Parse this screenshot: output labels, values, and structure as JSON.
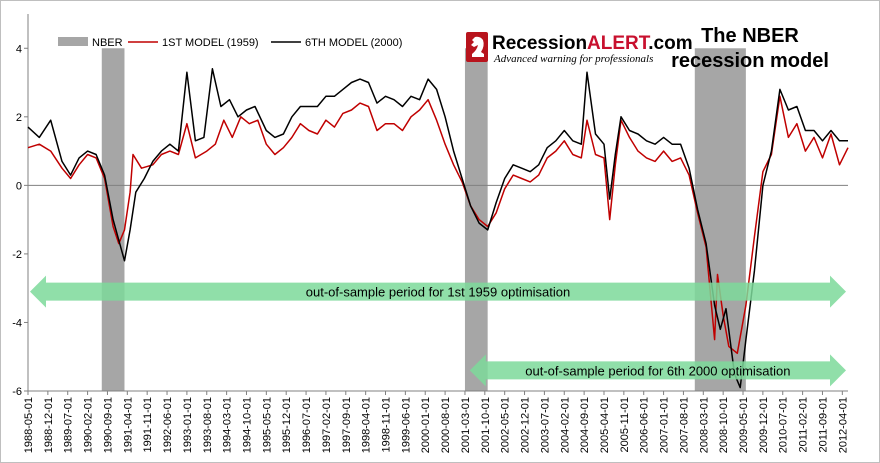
{
  "chart_data": {
    "type": "line",
    "title": "The NBER recession model",
    "title_lines": [
      "The NBER",
      "recession model"
    ],
    "brand": {
      "name_prefix": "Recession",
      "name_accent": "ALERT",
      "name_suffix": ".com",
      "tagline": "Advanced warning for professionals"
    },
    "ylim": [
      -6,
      5
    ],
    "yticks": [
      -6,
      -4,
      -2,
      0,
      2,
      4
    ],
    "x_start": "1988-05",
    "x_end": "2012-06",
    "xtick_labels": [
      "1988-05-01",
      "1988-12-01",
      "1989-07-01",
      "1990-02-01",
      "1990-09-01",
      "1991-04-01",
      "1991-11-01",
      "1992-06-01",
      "1993-01-01",
      "1993-08-01",
      "1994-03-01",
      "1994-10-01",
      "1995-05-01",
      "1995-12-01",
      "1996-07-01",
      "1997-02-01",
      "1997-09-01",
      "1998-04-01",
      "1998-11-01",
      "1999-06-01",
      "2000-01-01",
      "2000-08-01",
      "2001-03-01",
      "2001-10-01",
      "2002-05-01",
      "2002-12-01",
      "2003-07-01",
      "2004-02-01",
      "2004-09-01",
      "2005-04-01",
      "2005-11-01",
      "2006-06-01",
      "2007-01-01",
      "2007-08-01",
      "2008-03-01",
      "2008-10-01",
      "2009-05-01",
      "2009-12-01",
      "2010-07-01",
      "2011-02-01",
      "2011-09-01",
      "2012-04-01"
    ],
    "legend": [
      {
        "name": "NBER",
        "color": "#a6a6a6",
        "kind": "bar"
      },
      {
        "name": "1ST MODEL (1959)",
        "color": "#c00000",
        "kind": "line"
      },
      {
        "name": "6TH MODEL (2000)",
        "color": "#000000",
        "kind": "line"
      }
    ],
    "recessions": [
      {
        "start": "1990-07",
        "end": "1991-03"
      },
      {
        "start": "2001-03",
        "end": "2001-11"
      },
      {
        "start": "2007-12",
        "end": "2009-06"
      }
    ],
    "series": [
      {
        "name": "1ST MODEL (1959)",
        "color": "#c00000",
        "points": [
          [
            "1988-05",
            1.1
          ],
          [
            "1988-09",
            1.2
          ],
          [
            "1989-01",
            1.0
          ],
          [
            "1989-05",
            0.5
          ],
          [
            "1989-08",
            0.2
          ],
          [
            "1989-11",
            0.6
          ],
          [
            "1990-02",
            0.9
          ],
          [
            "1990-05",
            0.8
          ],
          [
            "1990-08",
            0.2
          ],
          [
            "1990-11",
            -1.2
          ],
          [
            "1991-01",
            -1.7
          ],
          [
            "1991-03",
            -1.3
          ],
          [
            "1991-05",
            -0.2
          ],
          [
            "1991-06",
            0.9
          ],
          [
            "1991-09",
            0.5
          ],
          [
            "1992-01",
            0.6
          ],
          [
            "1992-04",
            0.9
          ],
          [
            "1992-07",
            1.0
          ],
          [
            "1992-10",
            0.9
          ],
          [
            "1993-01",
            1.8
          ],
          [
            "1993-04",
            0.8
          ],
          [
            "1993-08",
            1.0
          ],
          [
            "1993-11",
            1.2
          ],
          [
            "1994-02",
            1.9
          ],
          [
            "1994-05",
            1.4
          ],
          [
            "1994-08",
            2.0
          ],
          [
            "1994-11",
            1.8
          ],
          [
            "1995-02",
            1.9
          ],
          [
            "1995-05",
            1.2
          ],
          [
            "1995-08",
            0.9
          ],
          [
            "1995-11",
            1.1
          ],
          [
            "1996-02",
            1.4
          ],
          [
            "1996-05",
            1.8
          ],
          [
            "1996-08",
            1.6
          ],
          [
            "1996-11",
            1.5
          ],
          [
            "1997-02",
            1.9
          ],
          [
            "1997-05",
            1.7
          ],
          [
            "1997-08",
            2.1
          ],
          [
            "1997-11",
            2.2
          ],
          [
            "1998-02",
            2.4
          ],
          [
            "1998-05",
            2.3
          ],
          [
            "1998-08",
            1.6
          ],
          [
            "1998-11",
            1.8
          ],
          [
            "1999-02",
            1.8
          ],
          [
            "1999-05",
            1.6
          ],
          [
            "1999-08",
            2.0
          ],
          [
            "1999-11",
            2.2
          ],
          [
            "2000-02",
            2.5
          ],
          [
            "2000-05",
            1.9
          ],
          [
            "2000-08",
            1.2
          ],
          [
            "2000-11",
            0.6
          ],
          [
            "2001-02",
            0.1
          ],
          [
            "2001-05",
            -0.6
          ],
          [
            "2001-08",
            -1.0
          ],
          [
            "2001-11",
            -1.2
          ],
          [
            "2002-02",
            -0.8
          ],
          [
            "2002-05",
            -0.1
          ],
          [
            "2002-08",
            0.3
          ],
          [
            "2002-11",
            0.2
          ],
          [
            "2003-02",
            0.1
          ],
          [
            "2003-05",
            0.3
          ],
          [
            "2003-08",
            0.8
          ],
          [
            "2003-11",
            1.0
          ],
          [
            "2004-02",
            1.3
          ],
          [
            "2004-05",
            0.9
          ],
          [
            "2004-08",
            0.8
          ],
          [
            "2004-10",
            1.9
          ],
          [
            "2005-01",
            0.9
          ],
          [
            "2005-04",
            0.8
          ],
          [
            "2005-06",
            -1.0
          ],
          [
            "2005-08",
            0.6
          ],
          [
            "2005-10",
            1.9
          ],
          [
            "2006-01",
            1.4
          ],
          [
            "2006-04",
            1.0
          ],
          [
            "2006-07",
            0.8
          ],
          [
            "2006-10",
            0.7
          ],
          [
            "2007-01",
            1.0
          ],
          [
            "2007-04",
            0.7
          ],
          [
            "2007-07",
            0.8
          ],
          [
            "2007-10",
            0.3
          ],
          [
            "2008-01",
            -0.8
          ],
          [
            "2008-04",
            -1.8
          ],
          [
            "2008-07",
            -4.5
          ],
          [
            "2008-08",
            -2.6
          ],
          [
            "2008-10",
            -3.8
          ],
          [
            "2008-12",
            -4.7
          ],
          [
            "2009-03",
            -4.9
          ],
          [
            "2009-06",
            -3.5
          ],
          [
            "2009-09",
            -1.5
          ],
          [
            "2009-12",
            0.4
          ],
          [
            "2010-03",
            0.9
          ],
          [
            "2010-06",
            2.6
          ],
          [
            "2010-09",
            1.4
          ],
          [
            "2010-12",
            1.8
          ],
          [
            "2011-03",
            1.0
          ],
          [
            "2011-06",
            1.4
          ],
          [
            "2011-09",
            0.8
          ],
          [
            "2011-12",
            1.5
          ],
          [
            "2012-03",
            0.6
          ],
          [
            "2012-06",
            1.1
          ]
        ]
      },
      {
        "name": "6TH MODEL (2000)",
        "color": "#000000",
        "points": [
          [
            "1988-05",
            1.7
          ],
          [
            "1988-09",
            1.4
          ],
          [
            "1989-01",
            1.9
          ],
          [
            "1989-05",
            0.7
          ],
          [
            "1989-08",
            0.3
          ],
          [
            "1989-11",
            0.8
          ],
          [
            "1990-02",
            1.0
          ],
          [
            "1990-05",
            0.9
          ],
          [
            "1990-08",
            0.3
          ],
          [
            "1990-11",
            -1.0
          ],
          [
            "1991-01",
            -1.6
          ],
          [
            "1991-03",
            -2.2
          ],
          [
            "1991-05",
            -1.3
          ],
          [
            "1991-07",
            -0.2
          ],
          [
            "1991-10",
            0.2
          ],
          [
            "1992-01",
            0.7
          ],
          [
            "1992-04",
            1.0
          ],
          [
            "1992-07",
            1.2
          ],
          [
            "1992-10",
            1.0
          ],
          [
            "1993-01",
            3.3
          ],
          [
            "1993-04",
            1.3
          ],
          [
            "1993-07",
            1.4
          ],
          [
            "1993-10",
            3.4
          ],
          [
            "1994-01",
            2.3
          ],
          [
            "1994-04",
            2.5
          ],
          [
            "1994-07",
            2.0
          ],
          [
            "1994-10",
            2.2
          ],
          [
            "1995-01",
            2.3
          ],
          [
            "1995-05",
            1.6
          ],
          [
            "1995-08",
            1.4
          ],
          [
            "1995-11",
            1.5
          ],
          [
            "1996-02",
            2.0
          ],
          [
            "1996-05",
            2.3
          ],
          [
            "1996-08",
            2.3
          ],
          [
            "1996-11",
            2.3
          ],
          [
            "1997-02",
            2.6
          ],
          [
            "1997-05",
            2.6
          ],
          [
            "1997-08",
            2.8
          ],
          [
            "1997-11",
            3.0
          ],
          [
            "1998-02",
            3.1
          ],
          [
            "1998-05",
            3.0
          ],
          [
            "1998-08",
            2.4
          ],
          [
            "1998-11",
            2.6
          ],
          [
            "1999-02",
            2.5
          ],
          [
            "1999-05",
            2.3
          ],
          [
            "1999-08",
            2.6
          ],
          [
            "1999-11",
            2.5
          ],
          [
            "2000-02",
            3.1
          ],
          [
            "2000-05",
            2.8
          ],
          [
            "2000-08",
            2.0
          ],
          [
            "2000-11",
            1.0
          ],
          [
            "2001-02",
            0.2
          ],
          [
            "2001-05",
            -0.6
          ],
          [
            "2001-08",
            -1.1
          ],
          [
            "2001-11",
            -1.3
          ],
          [
            "2002-02",
            -0.5
          ],
          [
            "2002-05",
            0.2
          ],
          [
            "2002-08",
            0.6
          ],
          [
            "2002-11",
            0.5
          ],
          [
            "2003-02",
            0.4
          ],
          [
            "2003-05",
            0.6
          ],
          [
            "2003-08",
            1.1
          ],
          [
            "2003-11",
            1.3
          ],
          [
            "2004-02",
            1.6
          ],
          [
            "2004-05",
            1.3
          ],
          [
            "2004-08",
            1.2
          ],
          [
            "2004-10",
            3.3
          ],
          [
            "2005-01",
            1.5
          ],
          [
            "2005-04",
            1.2
          ],
          [
            "2005-06",
            -0.4
          ],
          [
            "2005-08",
            0.9
          ],
          [
            "2005-10",
            2.0
          ],
          [
            "2006-01",
            1.6
          ],
          [
            "2006-04",
            1.5
          ],
          [
            "2006-07",
            1.3
          ],
          [
            "2006-10",
            1.2
          ],
          [
            "2007-01",
            1.4
          ],
          [
            "2007-04",
            1.2
          ],
          [
            "2007-07",
            1.2
          ],
          [
            "2007-10",
            0.5
          ],
          [
            "2008-01",
            -0.7
          ],
          [
            "2008-04",
            -1.7
          ],
          [
            "2008-07",
            -3.5
          ],
          [
            "2008-09",
            -4.2
          ],
          [
            "2008-11",
            -3.6
          ],
          [
            "2009-02",
            -5.5
          ],
          [
            "2009-04",
            -5.9
          ],
          [
            "2009-06",
            -4.5
          ],
          [
            "2009-09",
            -2.5
          ],
          [
            "2009-12",
            0.0
          ],
          [
            "2010-03",
            1.0
          ],
          [
            "2010-06",
            2.8
          ],
          [
            "2010-09",
            2.2
          ],
          [
            "2010-12",
            2.3
          ],
          [
            "2011-03",
            1.6
          ],
          [
            "2011-06",
            1.6
          ],
          [
            "2011-09",
            1.3
          ],
          [
            "2011-12",
            1.6
          ],
          [
            "2012-03",
            1.3
          ],
          [
            "2012-06",
            1.3
          ]
        ]
      }
    ],
    "annotations": [
      {
        "text": "out-of-sample period for 1st 1959  optimisation",
        "y": -3.1,
        "from": "1988-05",
        "to": "2012-06"
      },
      {
        "text": "out-of-sample period for 6th  2000 optimisation",
        "y": -5.4,
        "from": "2001-04",
        "to": "2012-06"
      }
    ],
    "arrow_color": "#7dd99a"
  }
}
